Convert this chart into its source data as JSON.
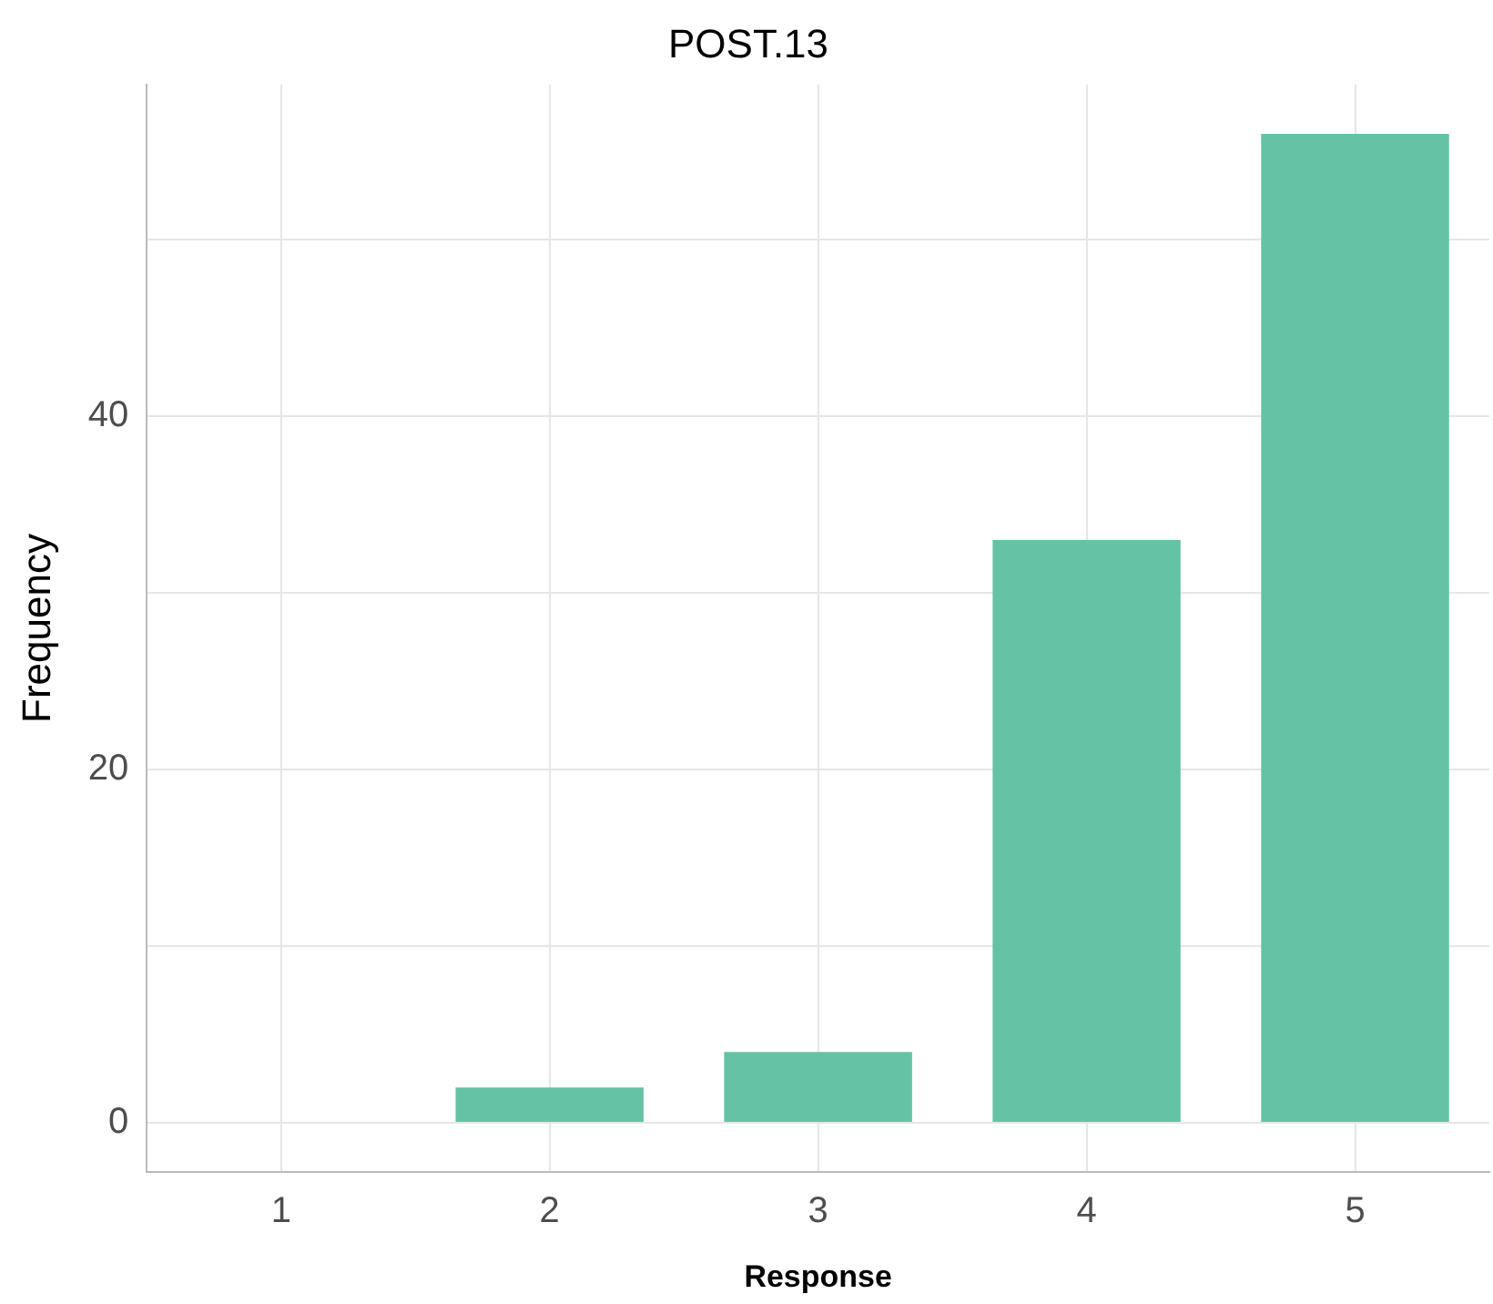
{
  "chart_data": {
    "type": "bar",
    "title": "POST.13",
    "xlabel": "Response",
    "ylabel": "Frequency",
    "categories": [
      "1",
      "2",
      "3",
      "4",
      "5"
    ],
    "values": [
      0,
      2,
      4,
      33,
      56
    ],
    "color": "#66c2a5",
    "ylim": [
      -2.8,
      58.8
    ],
    "yticks": [
      0,
      {
        "value": 10,
        "label": null
      },
      20,
      {
        "value": 30,
        "label": null
      },
      40,
      {
        "value": 50,
        "label": null
      }
    ],
    "grid": true,
    "legend": false
  }
}
